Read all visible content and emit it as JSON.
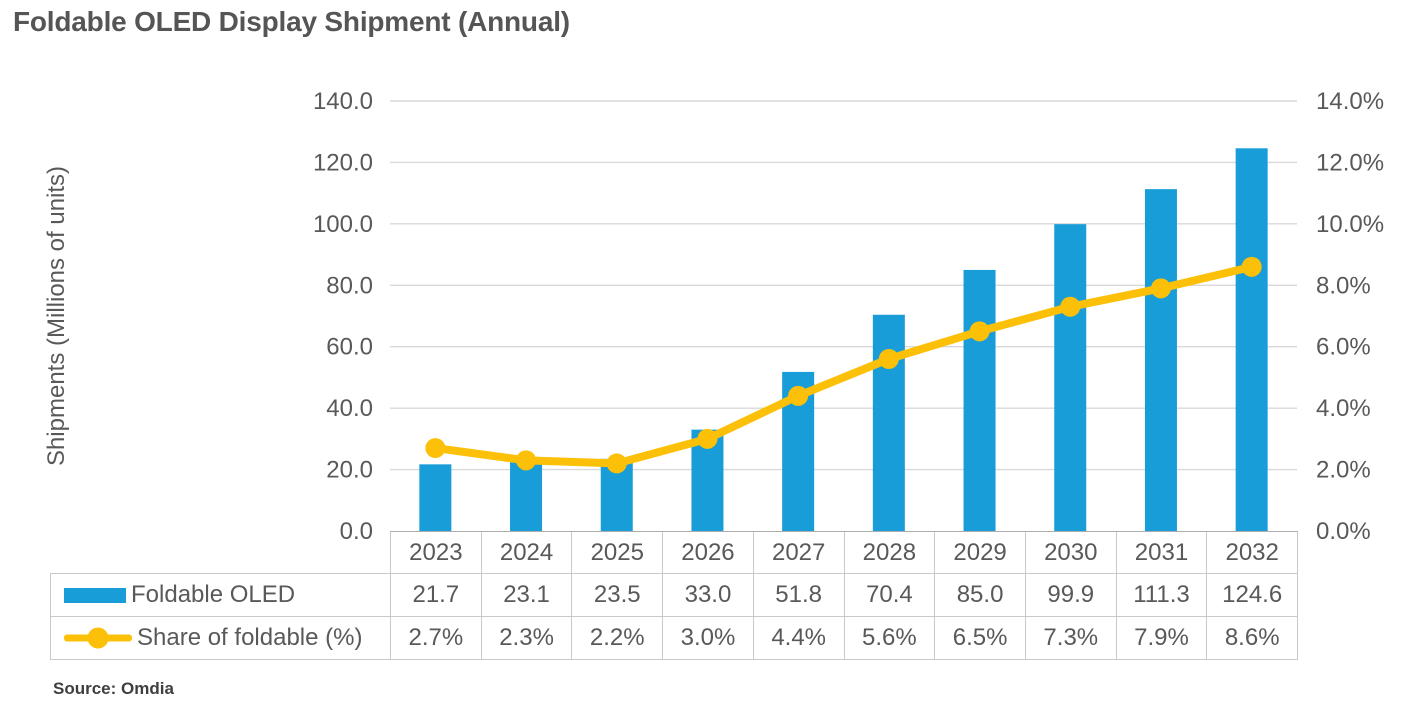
{
  "chart_data": {
    "type": "bar",
    "title": "Foldable OLED Display Shipment (Annual)",
    "categories": [
      "2023",
      "2024",
      "2025",
      "2026",
      "2027",
      "2028",
      "2029",
      "2030",
      "2031",
      "2032"
    ],
    "series": [
      {
        "name": "Foldable OLED",
        "kind": "bar",
        "axis": "left",
        "color": "#189DD9",
        "values": [
          21.7,
          23.1,
          23.5,
          33.0,
          51.8,
          70.4,
          85.0,
          99.9,
          111.3,
          124.6
        ],
        "labels": [
          "21.7",
          "23.1",
          "23.5",
          "33.0",
          "51.8",
          "70.4",
          "85.0",
          "99.9",
          "111.3",
          "124.6"
        ]
      },
      {
        "name": "Share of foldable (%)",
        "kind": "line",
        "axis": "right",
        "color": "#FDC008",
        "values": [
          2.7,
          2.3,
          2.2,
          3.0,
          4.4,
          5.6,
          6.5,
          7.3,
          7.9,
          8.6
        ],
        "labels": [
          "2.7%",
          "2.3%",
          "2.2%",
          "3.0%",
          "4.4%",
          "5.6%",
          "6.5%",
          "7.3%",
          "7.9%",
          "8.6%"
        ]
      }
    ],
    "left_axis": {
      "title": "Shipments (Millions of units)",
      "min": 0,
      "max": 140,
      "step": 20,
      "tick_labels": [
        "0.0",
        "20.0",
        "40.0",
        "60.0",
        "80.0",
        "100.0",
        "120.0",
        "140.0"
      ]
    },
    "right_axis": {
      "min": 0,
      "max": 14,
      "step": 2,
      "tick_labels": [
        "0.0%",
        "2.0%",
        "4.0%",
        "6.0%",
        "8.0%",
        "10.0%",
        "12.0%",
        "14.0%"
      ]
    },
    "grid": true,
    "legend_position": "table-left"
  },
  "source": "Source: Omdia",
  "colors": {
    "bar": "#189DD9",
    "line": "#FDC008",
    "grid": "#D9D9D9",
    "axis_line": "#ADADAD",
    "table_border": "#C9C9C9",
    "text": "#595959",
    "title_text": "#555555",
    "source_text": "#3F3F3F"
  }
}
